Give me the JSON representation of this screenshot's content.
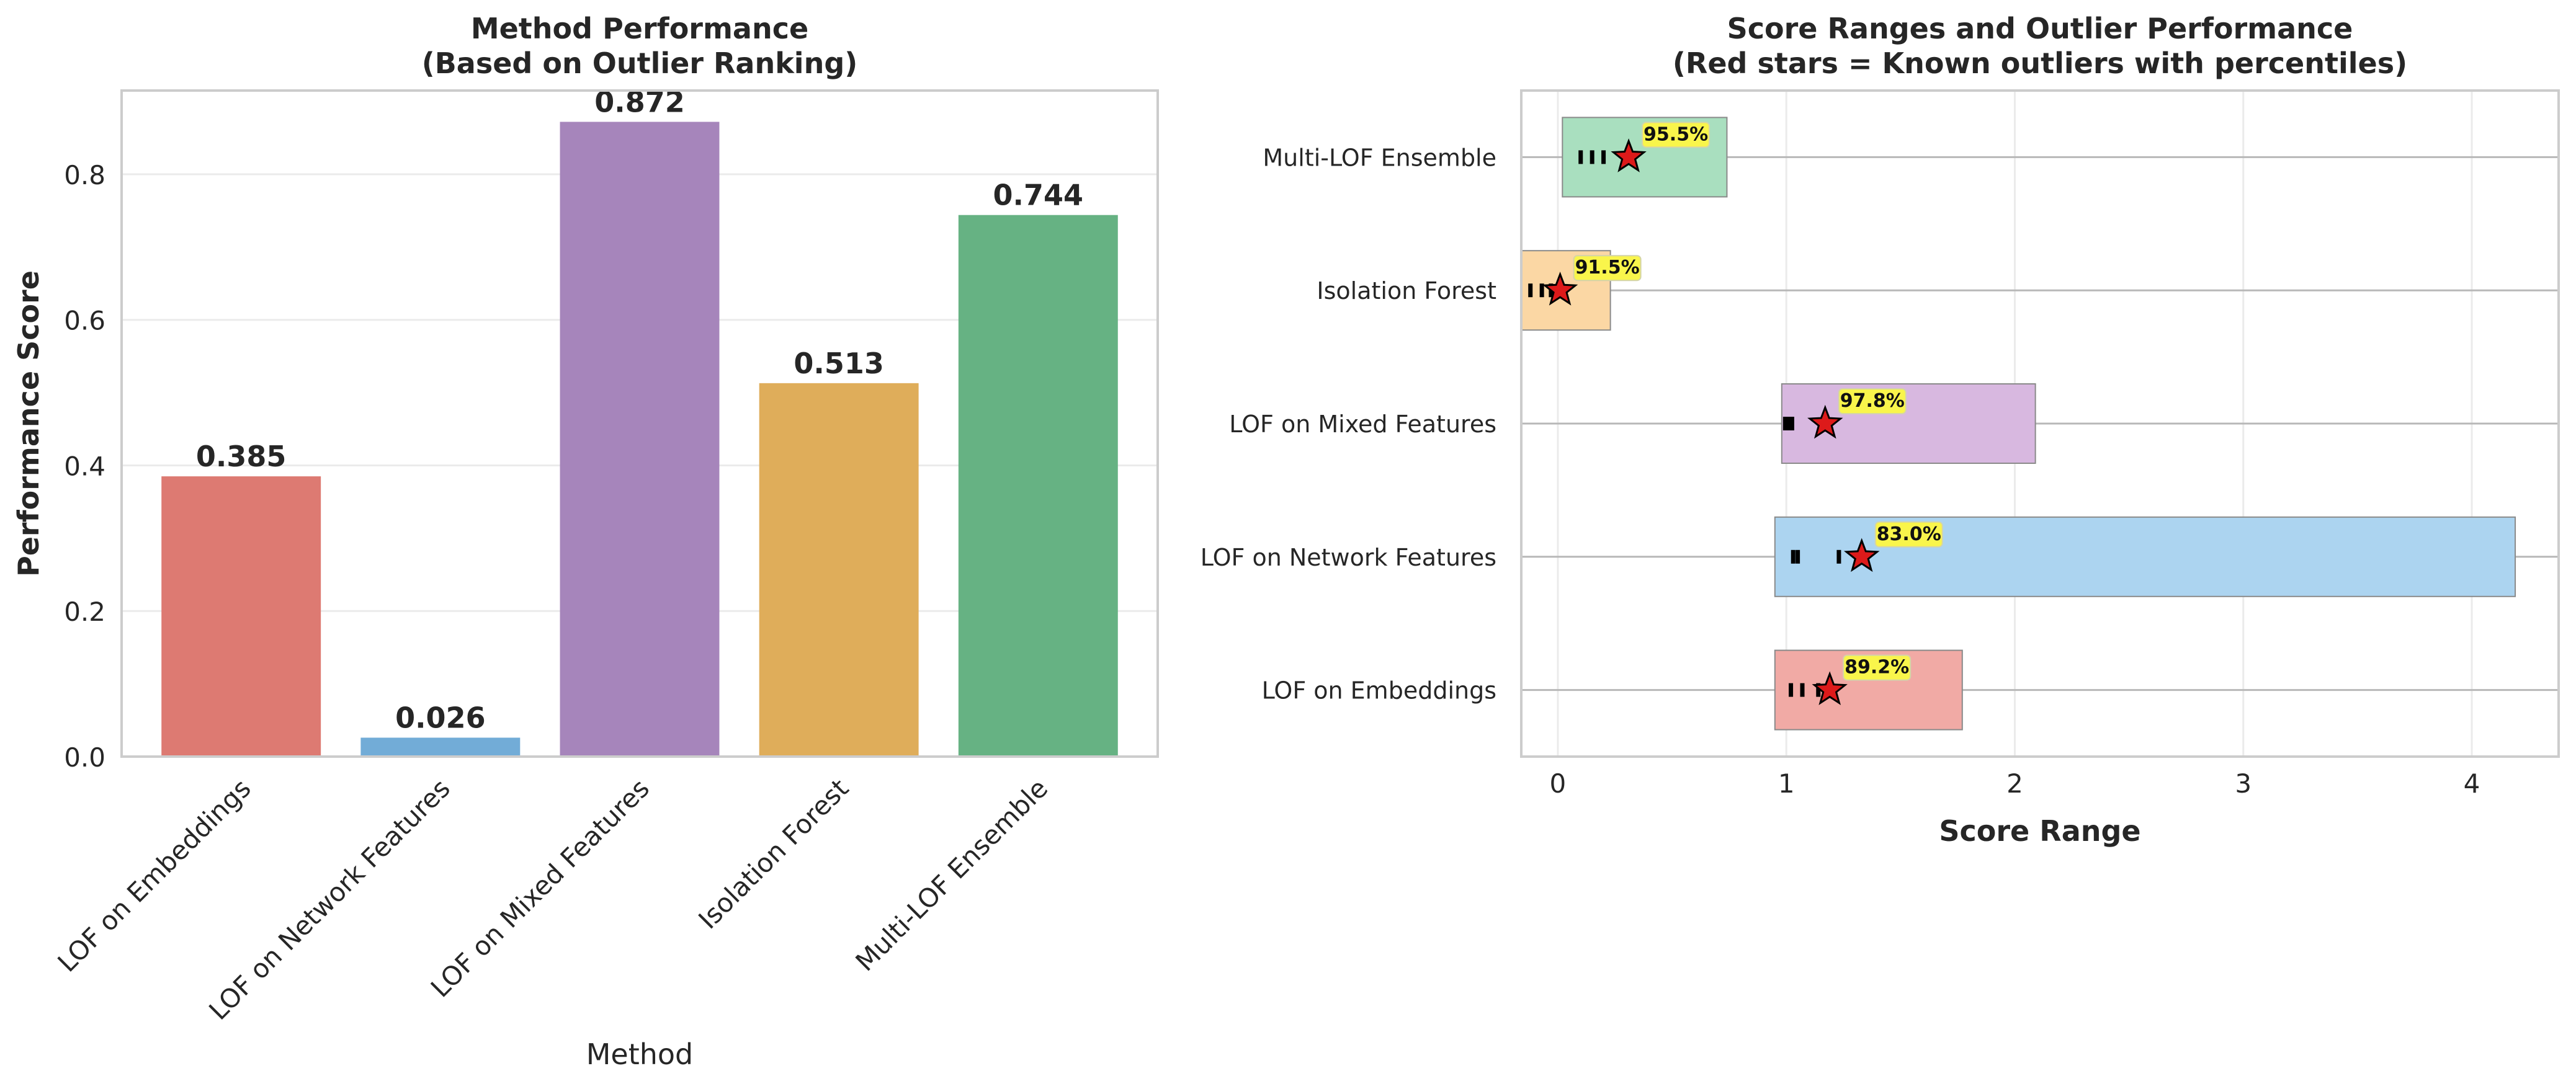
{
  "chart_data": [
    {
      "type": "bar",
      "title": "Method Performance\n(Based on Outlier Ranking)",
      "xlabel": "Method",
      "ylabel": "Performance Score",
      "categories": [
        "LOF on Embeddings",
        "LOF on Network Features",
        "LOF on Mixed Features",
        "Isolation Forest",
        "Multi-LOF Ensemble"
      ],
      "values": [
        0.385,
        0.026,
        0.872,
        0.513,
        0.744
      ],
      "value_labels": [
        "0.385",
        "0.026",
        "0.872",
        "0.513",
        "0.744"
      ],
      "colors": [
        "#dd7a72",
        "#72acd7",
        "#a685bb",
        "#dfad5a",
        "#66b283"
      ],
      "ylim": [
        0,
        0.915
      ],
      "yticks": [
        0.0,
        0.2,
        0.4,
        0.6,
        0.8
      ],
      "ytick_labels": [
        "0.0",
        "0.2",
        "0.4",
        "0.6",
        "0.8"
      ],
      "grid": true
    },
    {
      "type": "range",
      "title": "Score Ranges and Outlier Performance\n(Red stars = Known outliers with percentiles)",
      "xlabel": "Score Range",
      "ylabel": "",
      "xlim": [
        -0.16,
        4.38
      ],
      "xticks": [
        0,
        1,
        2,
        3,
        4
      ],
      "xtick_labels": [
        "0",
        "1",
        "2",
        "3",
        "4"
      ],
      "grid": true,
      "methods": [
        {
          "name": "LOF on Embeddings",
          "min": 0.95,
          "max": 1.77,
          "color": "#f1aaa5",
          "ticks": [
            1.02,
            1.07,
            1.14
          ],
          "outlier": 1.19,
          "percentile": "89.2%"
        },
        {
          "name": "LOF on Network Features",
          "min": 0.95,
          "max": 4.19,
          "color": "#acd4f0",
          "ticks": [
            1.03,
            1.05,
            1.23
          ],
          "outlier": 1.33,
          "percentile": "83.0%"
        },
        {
          "name": "LOF on Mixed Features",
          "min": 0.98,
          "max": 2.09,
          "color": "#d8b8e0",
          "ticks": [
            0.995,
            1.01,
            1.025
          ],
          "outlier": 1.17,
          "percentile": "97.8%"
        },
        {
          "name": "Isolation Forest",
          "min": -0.16,
          "max": 0.23,
          "color": "#fbd7a4",
          "ticks": [
            -0.12,
            -0.07,
            -0.03
          ],
          "outlier": 0.01,
          "percentile": "91.5%"
        },
        {
          "name": "Multi-LOF Ensemble",
          "min": 0.02,
          "max": 0.74,
          "color": "#a9dfbf",
          "ticks": [
            0.1,
            0.15,
            0.2
          ],
          "outlier": 0.31,
          "percentile": "95.5%"
        }
      ]
    }
  ]
}
